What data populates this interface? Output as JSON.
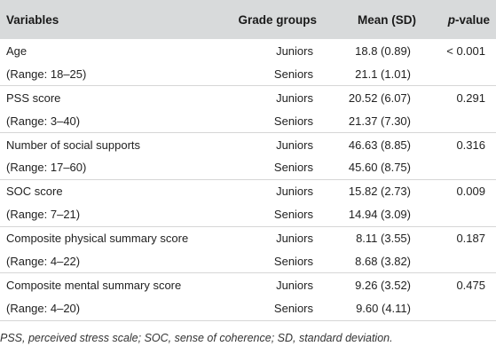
{
  "table": {
    "headers": {
      "variables": "Variables",
      "grade_groups": "Grade groups",
      "mean_sd": "Mean (SD)",
      "p_italic": "p",
      "p_rest": "-value"
    },
    "rows": [
      {
        "variable": "Age",
        "grade": "Juniors",
        "mean": "18.8 (0.89)",
        "p": "< 0.001"
      },
      {
        "variable": "(Range: 18–25)",
        "grade": "Seniors",
        "mean": "21.1 (1.01)",
        "p": ""
      },
      {
        "variable": "PSS score",
        "grade": "Juniors",
        "mean": "20.52 (6.07)",
        "p": "0.291"
      },
      {
        "variable": "(Range: 3–40)",
        "grade": "Seniors",
        "mean": "21.37 (7.30)",
        "p": ""
      },
      {
        "variable": "Number of social supports",
        "grade": "Juniors",
        "mean": "46.63 (8.85)",
        "p": "0.316"
      },
      {
        "variable": "(Range: 17–60)",
        "grade": "Seniors",
        "mean": "45.60 (8.75)",
        "p": ""
      },
      {
        "variable": "SOC score",
        "grade": "Juniors",
        "mean": "15.82 (2.73)",
        "p": "0.009"
      },
      {
        "variable": "(Range: 7–21)",
        "grade": "Seniors",
        "mean": "14.94 (3.09)",
        "p": ""
      },
      {
        "variable": "Composite physical summary score",
        "grade": "Juniors",
        "mean": "8.11 (3.55)",
        "p": "0.187"
      },
      {
        "variable": "(Range: 4–22)",
        "grade": "Seniors",
        "mean": "8.68 (3.82)",
        "p": ""
      },
      {
        "variable": "Composite mental summary score",
        "grade": "Juniors",
        "mean": "9.26 (3.52)",
        "p": "0.475"
      },
      {
        "variable": "(Range: 4–20)",
        "grade": "Seniors",
        "mean": "9.60 (4.11)",
        "p": ""
      }
    ]
  },
  "footnote": "PSS, perceived stress scale; SOC, sense of coherence; SD, standard deviation.",
  "colors": {
    "header_bg": "#d8dadb",
    "row_rule": "#d6d6d6",
    "text": "#222222"
  }
}
